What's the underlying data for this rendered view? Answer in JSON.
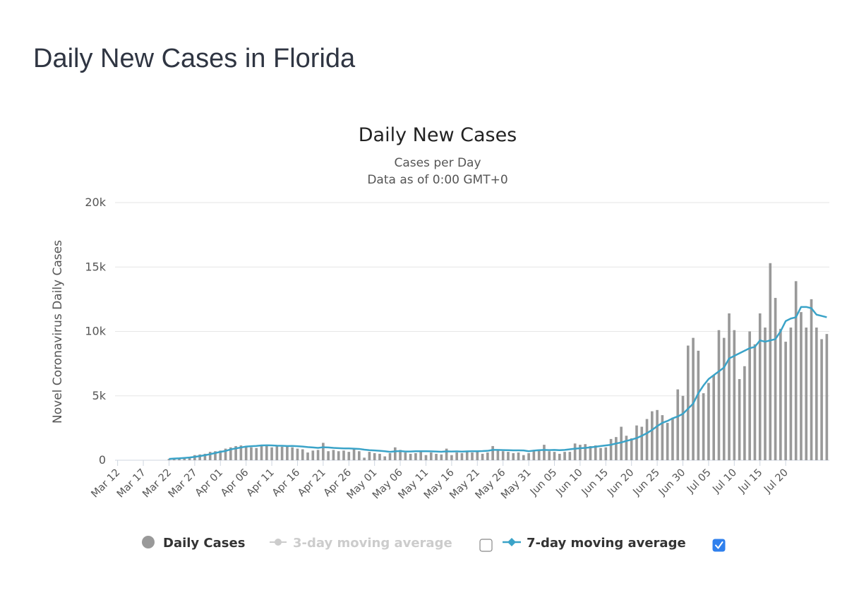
{
  "page": {
    "title": "Daily New Cases in Florida"
  },
  "legend": {
    "daily_label": "Daily Cases",
    "avg3_label": "3-day moving average",
    "avg7_label": "7-day moving average",
    "avg3_checked": false,
    "avg7_checked": true
  },
  "colors": {
    "bars": "#999999",
    "line7": "#3aa3c8",
    "disabled": "#cccccc",
    "grid": "#e6e6e6",
    "checkbox": "#2f80ed"
  },
  "chart_data": {
    "type": "bar",
    "title": "Daily New Cases",
    "subtitle_lines": [
      "Cases per Day",
      "Data as of 0:00 GMT+0"
    ],
    "ylabel": "Novel Coronavirus Daily Cases",
    "xlabel": "",
    "ylim": [
      0,
      20000
    ],
    "yticks": [
      0,
      5000,
      10000,
      15000,
      20000
    ],
    "ytick_labels": [
      "0",
      "5k",
      "10k",
      "15k",
      "20k"
    ],
    "grid": true,
    "legend_position": "bottom",
    "xtick_labels": [
      "Mar 12",
      "Mar 17",
      "Mar 22",
      "Mar 27",
      "Apr 01",
      "Apr 06",
      "Apr 11",
      "Apr 16",
      "Apr 21",
      "Apr 26",
      "May 01",
      "May 06",
      "May 11",
      "May 16",
      "May 21",
      "May 26",
      "May 31",
      "Jun 05",
      "Jun 10",
      "Jun 15",
      "Jun 20",
      "Jun 25",
      "Jun 30",
      "Jul 05",
      "Jul 10",
      "Jul 15",
      "Jul 20"
    ],
    "first_date": "Mar 12",
    "series": [
      {
        "name": "Daily Cases",
        "values": [
          0,
          0,
          0,
          0,
          0,
          0,
          0,
          0,
          0,
          0,
          100,
          150,
          180,
          200,
          250,
          400,
          450,
          500,
          650,
          700,
          750,
          900,
          1000,
          1100,
          1150,
          1100,
          1000,
          950,
          1100,
          1200,
          1000,
          1150,
          1050,
          1050,
          1000,
          900,
          850,
          600,
          750,
          800,
          1350,
          700,
          800,
          700,
          750,
          650,
          900,
          700,
          200,
          650,
          550,
          500,
          300,
          550,
          1000,
          800,
          600,
          500,
          550,
          700,
          400,
          600,
          500,
          450,
          900,
          400,
          600,
          550,
          700,
          600,
          650,
          500,
          600,
          1100,
          800,
          700,
          650,
          550,
          600,
          400,
          550,
          750,
          800,
          1200,
          700,
          650,
          500,
          650,
          650,
          1300,
          1200,
          1250,
          1100,
          1150,
          950,
          1000,
          1650,
          1800,
          2600,
          1900,
          1700,
          2700,
          2600,
          3200,
          3800,
          3900,
          3500,
          2900,
          3300,
          5500,
          5000,
          8900,
          9500,
          8500,
          5200,
          6000,
          6600,
          10100,
          9500,
          11400,
          10100,
          6300,
          7300,
          10000,
          9000,
          11400,
          10300,
          15300,
          12600,
          10200,
          9200,
          10300,
          13900,
          11500,
          10300,
          12500,
          10300,
          9400,
          9800
        ]
      },
      {
        "name": "7-day moving average",
        "values": [
          null,
          null,
          null,
          null,
          null,
          null,
          null,
          null,
          null,
          null,
          100,
          130,
          150,
          180,
          210,
          260,
          320,
          390,
          470,
          560,
          650,
          720,
          840,
          920,
          990,
          1060,
          1090,
          1110,
          1150,
          1160,
          1150,
          1130,
          1120,
          1100,
          1110,
          1090,
          1060,
          1020,
          990,
          960,
          1010,
          990,
          960,
          940,
          920,
          920,
          900,
          880,
          820,
          780,
          760,
          730,
          700,
          650,
          690,
          710,
          680,
          680,
          700,
          700,
          700,
          690,
          680,
          660,
          690,
          680,
          690,
          670,
          690,
          700,
          700,
          710,
          730,
          800,
          800,
          790,
          780,
          770,
          770,
          760,
          700,
          750,
          780,
          800,
          790,
          800,
          780,
          800,
          850,
          900,
          930,
          960,
          1000,
          1050,
          1100,
          1150,
          1200,
          1300,
          1380,
          1500,
          1600,
          1720,
          1900,
          2100,
          2350,
          2650,
          2900,
          3050,
          3250,
          3400,
          3600,
          4000,
          4400,
          5200,
          5800,
          6300,
          6600,
          6900,
          7200,
          7900,
          8100,
          8300,
          8500,
          8700,
          8800,
          9300,
          9200,
          9300,
          9400,
          10000,
          10800,
          11000,
          11100,
          11900,
          11900,
          11800,
          11300,
          11200,
          11100
        ]
      }
    ]
  }
}
